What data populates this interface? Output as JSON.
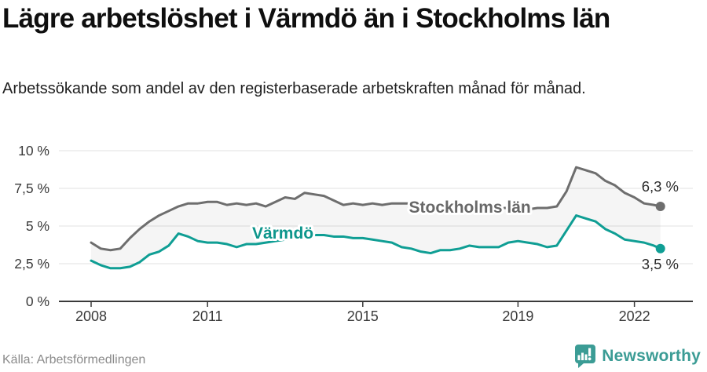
{
  "header": {
    "title": "Lägre arbetslöshet i Värmdö än i Stockholms län",
    "subtitle": "Arbetssökande som andel av den registerbaserade arbetskraften månad för månad."
  },
  "footer": {
    "source": "Källa: Arbetsförmedlingen",
    "brand": "Newsworthy",
    "brand_icon": "newsworthy-speech-bubble-bar-chart-icon",
    "brand_color": "#3b9c95"
  },
  "chart_data": {
    "type": "line",
    "title": "",
    "xlabel": "",
    "ylabel": "",
    "grid": true,
    "x_axis": {
      "ticks": [
        2008,
        2011,
        2015,
        2019,
        2022
      ],
      "range": [
        2008,
        2022.9
      ]
    },
    "y_axis": {
      "tick_labels": [
        "0 %",
        "2,5 %",
        "5 %",
        "7,5 %",
        "10 %"
      ],
      "tick_values": [
        0,
        2.5,
        5,
        7.5,
        10
      ],
      "range": [
        0,
        10
      ]
    },
    "x": [
      2008,
      2008.25,
      2008.5,
      2008.75,
      2009,
      2009.25,
      2009.5,
      2009.75,
      2010,
      2010.25,
      2010.5,
      2010.75,
      2011,
      2011.25,
      2011.5,
      2011.75,
      2012,
      2012.25,
      2012.5,
      2012.75,
      2013,
      2013.25,
      2013.5,
      2013.75,
      2014,
      2014.25,
      2014.5,
      2014.75,
      2015,
      2015.25,
      2015.5,
      2015.75,
      2016,
      2016.25,
      2016.5,
      2016.75,
      2017,
      2017.25,
      2017.5,
      2017.75,
      2018,
      2018.25,
      2018.5,
      2018.75,
      2019,
      2019.25,
      2019.5,
      2019.75,
      2020,
      2020.25,
      2020.5,
      2020.75,
      2021,
      2021.25,
      2021.5,
      2021.75,
      2022,
      2022.25,
      2022.5,
      2022.67
    ],
    "series": [
      {
        "name": "Stockholms län",
        "color": "#6e6e6e",
        "label_color": "#686868",
        "end_label": "6,3 %",
        "label_pos": {
          "x": 2017.76,
          "y": 6.25
        },
        "values": [
          3.9,
          3.5,
          3.4,
          3.5,
          4.2,
          4.8,
          5.3,
          5.7,
          6.0,
          6.3,
          6.5,
          6.5,
          6.6,
          6.6,
          6.4,
          6.5,
          6.4,
          6.5,
          6.3,
          6.6,
          6.9,
          6.8,
          7.2,
          7.1,
          7.0,
          6.7,
          6.4,
          6.5,
          6.4,
          6.5,
          6.4,
          6.5,
          6.5,
          6.5,
          6.4,
          6.4,
          6.4,
          6.3,
          6.3,
          6.3,
          6.3,
          6.2,
          6.2,
          6.2,
          6.2,
          6.1,
          6.2,
          6.2,
          6.3,
          7.3,
          8.9,
          8.7,
          8.5,
          8.0,
          7.7,
          7.2,
          6.9,
          6.5,
          6.4,
          6.3
        ]
      },
      {
        "name": "Värmdö",
        "color": "#0f9e94",
        "label_color": "#0e968c",
        "end_label": "3,5 %",
        "label_pos": {
          "x": 2012.94,
          "y": 4.53
        },
        "values": [
          2.7,
          2.4,
          2.2,
          2.2,
          2.3,
          2.6,
          3.1,
          3.3,
          3.7,
          4.5,
          4.3,
          4.0,
          3.9,
          3.9,
          3.8,
          3.6,
          3.8,
          3.8,
          3.9,
          4.0,
          4.1,
          4.3,
          4.4,
          4.4,
          4.4,
          4.3,
          4.3,
          4.2,
          4.2,
          4.1,
          4.0,
          3.9,
          3.6,
          3.5,
          3.3,
          3.2,
          3.4,
          3.4,
          3.5,
          3.7,
          3.6,
          3.6,
          3.6,
          3.9,
          4.0,
          3.9,
          3.8,
          3.6,
          3.7,
          4.7,
          5.7,
          5.5,
          5.3,
          4.8,
          4.5,
          4.1,
          4.0,
          3.9,
          3.7,
          3.5
        ]
      }
    ],
    "area_between_fill": "rgba(125,125,125,0.08)",
    "legend_position": "inline-labels"
  }
}
